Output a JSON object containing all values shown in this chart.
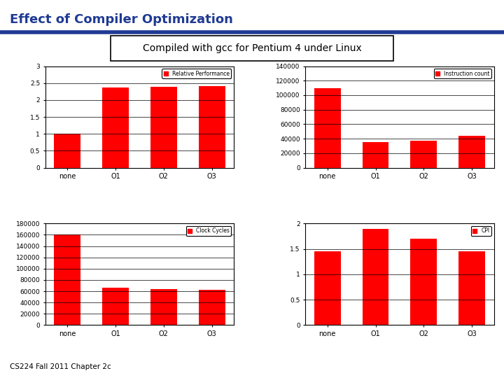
{
  "title": "Effect of Compiler Optimization",
  "subtitle": "Compiled with gcc for Pentium 4 under Linux",
  "footer": "CS224 Fall 2011 Chapter 2c",
  "categories": [
    "none",
    "O1",
    "O2",
    "O3"
  ],
  "bar_color": "#FF0000",
  "title_color": "#1F3A93",
  "chart1": {
    "title": "Relative Performance",
    "values": [
      1.0,
      2.37,
      2.38,
      2.41
    ],
    "ylim": [
      0,
      3
    ],
    "yticks": [
      0,
      0.5,
      1.0,
      1.5,
      2.0,
      2.5,
      3.0
    ]
  },
  "chart2": {
    "title": "Instruction count",
    "values": [
      110000,
      35000,
      37000,
      44000
    ],
    "ylim": [
      0,
      140000
    ],
    "yticks": [
      0,
      20000,
      40000,
      60000,
      80000,
      100000,
      120000,
      140000
    ]
  },
  "chart3": {
    "title": "Clock Cycles",
    "values": [
      160000,
      66000,
      64000,
      62000
    ],
    "ylim": [
      0,
      180000
    ],
    "yticks": [
      0,
      20000,
      40000,
      60000,
      80000,
      100000,
      120000,
      140000,
      160000,
      180000
    ]
  },
  "chart4": {
    "title": "CPI",
    "values": [
      1.45,
      1.9,
      1.7,
      1.45
    ],
    "ylim": [
      0,
      2
    ],
    "yticks": [
      0,
      0.5,
      1.0,
      1.5,
      2.0
    ]
  }
}
